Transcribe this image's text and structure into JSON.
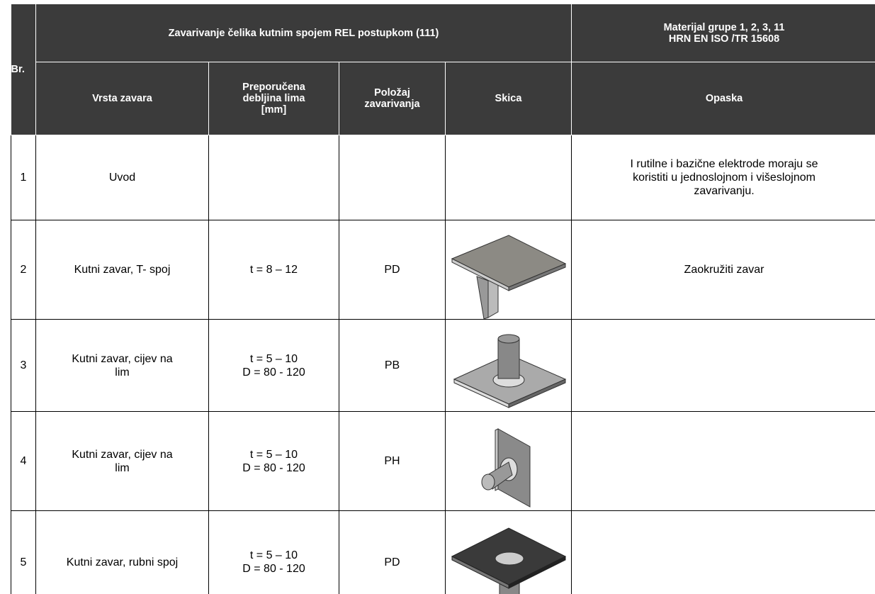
{
  "header": {
    "br": "Br.",
    "title": "Zavarivanje čelika kutnim spojem REL postupkom (111)",
    "material": "Materijal grupe   1, 2, 3, 11\nHRN EN ISO /TR 15608"
  },
  "table": {
    "columns": {
      "type": "Vrsta zavara",
      "thickness": "Preporučena\ndebljina lima\n[mm]",
      "position": "Položaj\nzavarivanja",
      "sketch": "Skica",
      "note": "Opaska"
    },
    "rows": [
      {
        "no": "1",
        "type": "Uvod",
        "note": "I rutilne i bazične elektrode moraju se\nkoristiti u jednoslojnom i višeslojnom\nzavarivanju."
      },
      {
        "no": "2",
        "type": "Kutni zavar, T- spoj",
        "thickness": "t = 8 – 12",
        "position": "PD",
        "note": "Zaokružiti zavar"
      },
      {
        "no": "3",
        "type": "Kutni zavar, cijev na\nlim",
        "thickness": "t = 5 – 10\nD = 80 - 120",
        "position": "PB"
      },
      {
        "no": "4",
        "type": "Kutni zavar, cijev na\nlim",
        "thickness": "t = 5 – 10\nD = 80 - 120",
        "position": "PH"
      },
      {
        "no": "5",
        "type": "Kutni zavar, rubni spoj",
        "thickness": "t = 5 – 10\nD = 80 - 120",
        "position": "PD"
      }
    ]
  }
}
